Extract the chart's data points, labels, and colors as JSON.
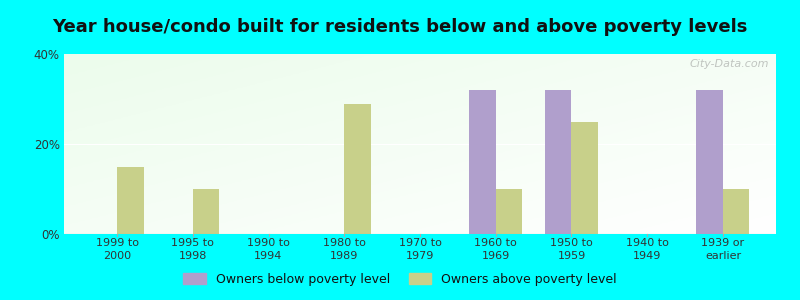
{
  "title": "Year house/condo built for residents below and above poverty levels",
  "categories": [
    "1999 to\n2000",
    "1995 to\n1998",
    "1990 to\n1994",
    "1980 to\n1989",
    "1970 to\n1979",
    "1960 to\n1969",
    "1950 to\n1959",
    "1940 to\n1949",
    "1939 or\nearlier"
  ],
  "below_poverty": [
    0,
    0,
    0,
    0,
    0,
    32,
    32,
    0,
    32
  ],
  "above_poverty": [
    15,
    10,
    0,
    29,
    0,
    10,
    25,
    0,
    10
  ],
  "below_color": "#b09fcc",
  "above_color": "#c8d08a",
  "ylim": [
    0,
    40
  ],
  "yticks": [
    0,
    20,
    40
  ],
  "ytick_labels": [
    "0%",
    "20%",
    "40%"
  ],
  "background_color": "#00ffff",
  "bar_width": 0.35,
  "title_fontsize": 13,
  "legend_below_label": "Owners below poverty level",
  "legend_above_label": "Owners above poverty level",
  "watermark": "City-Data.com"
}
